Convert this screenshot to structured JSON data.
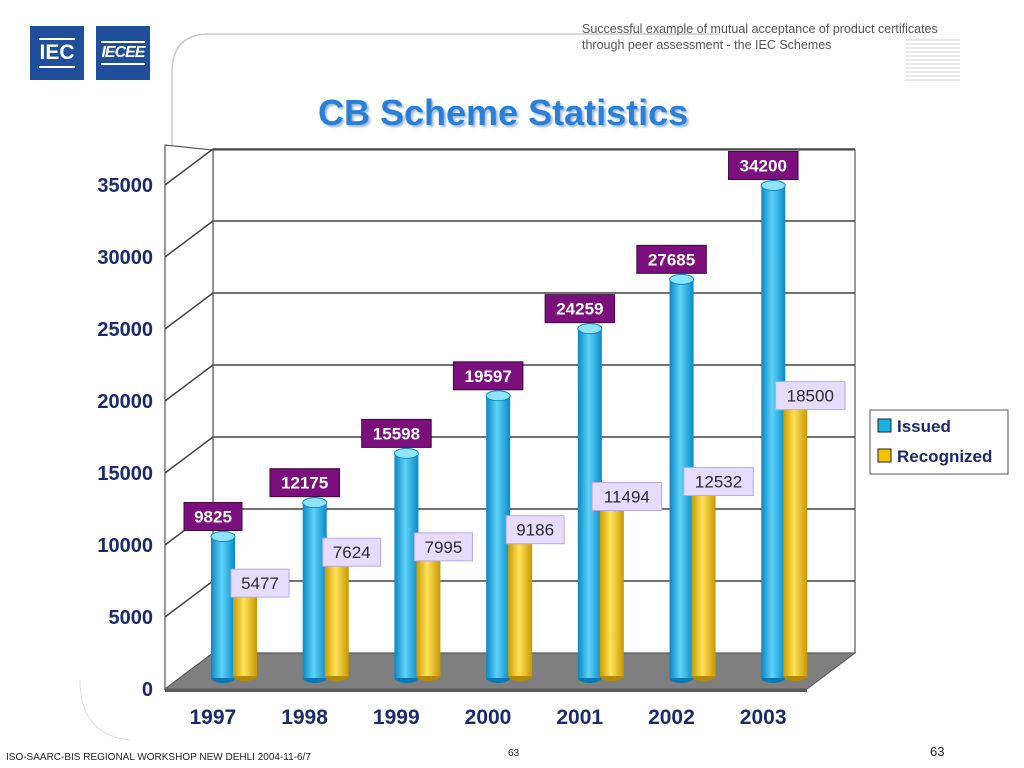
{
  "header": {
    "logo_left": "IEC",
    "logo_right": "IECEE",
    "note_line1": "Successful example of mutual acceptance of product certificates",
    "note_line2": "through peer assessment  - the IEC Schemes"
  },
  "page_title": "CB Scheme Statistics",
  "chart_data": {
    "type": "bar",
    "title": "CB Scheme Statistics",
    "categories": [
      "1997",
      "1998",
      "1999",
      "2000",
      "2001",
      "2002",
      "2003"
    ],
    "series": [
      {
        "name": "Issued",
        "color": "#1bb0e3",
        "values": [
          9825,
          12175,
          15598,
          19597,
          24259,
          27685,
          34200
        ]
      },
      {
        "name": "Recognized",
        "color": "#f2c200",
        "values": [
          5477,
          7624,
          7995,
          9186,
          11494,
          12532,
          18500
        ]
      }
    ],
    "yticks": [
      "0",
      "5000",
      "10000",
      "15000",
      "20000",
      "25000",
      "30000",
      "35000"
    ],
    "ylim": [
      0,
      35000
    ],
    "grid": true,
    "legend": "right",
    "data_label_style": {
      "Issued": "purple-box",
      "Recognized": "lavender-box"
    }
  },
  "footer": {
    "left": "ISO-SAARC-BIS REGIONAL WORKSHOP NEW DEHLI 2004-11-6/7",
    "center_page": "63",
    "right_page": "63"
  }
}
